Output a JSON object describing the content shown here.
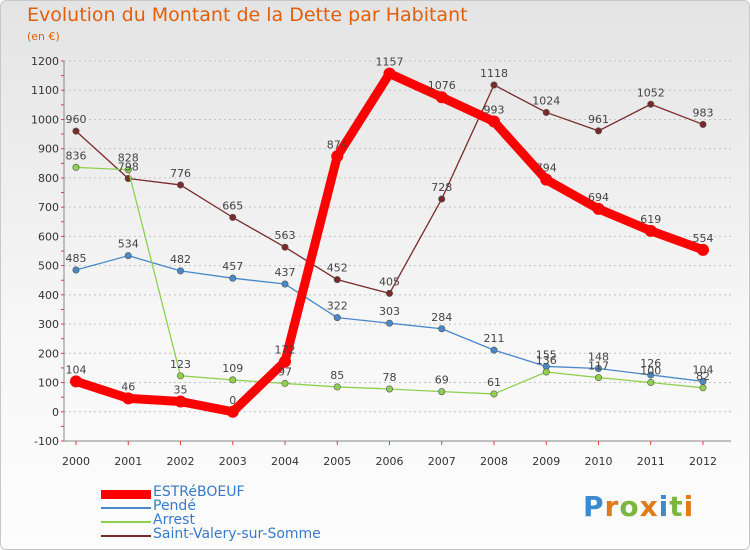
{
  "title": "Evolution du Montant de la Dette par Habitant",
  "subtitle": "(en €)",
  "logo": {
    "text": "Proxiti",
    "letter_colors": [
      "#3a8ad0",
      "#e07a1a",
      "#7ab640",
      "#e07a1a",
      "#3a8ad0",
      "#7ab640",
      "#e07a1a"
    ]
  },
  "chart_data": {
    "type": "line",
    "x": [
      "2000",
      "2001",
      "2002",
      "2003",
      "2004",
      "2005",
      "2006",
      "2007",
      "2008",
      "2009",
      "2010",
      "2011",
      "2012"
    ],
    "y_ticks": [
      "-100",
      "0",
      "100",
      "200",
      "300",
      "400",
      "500",
      "600",
      "700",
      "800",
      "900",
      "1000",
      "1100",
      "1200"
    ],
    "ylim": [
      -100,
      1200
    ],
    "grid": "horizontal dotted",
    "legend_position": "bottom-left",
    "series": [
      {
        "name": "ESTRéBOEUF",
        "color": "#ff0000",
        "values": [
          104,
          46,
          35,
          0,
          172,
          874,
          1157,
          1076,
          993,
          794,
          694,
          619,
          554
        ],
        "labels": [
          "104",
          "46",
          "35",
          "0",
          "172",
          "874",
          "1157",
          "1076",
          "993",
          "794",
          "694",
          "619",
          "554"
        ]
      },
      {
        "name": "Pendé",
        "color": "#4a88c8",
        "values": [
          485,
          534,
          482,
          457,
          437,
          322,
          303,
          284,
          211,
          155,
          148,
          126,
          104
        ],
        "labels": [
          "485",
          "534",
          "482",
          "457",
          "437",
          "322",
          "303",
          "284",
          "211",
          "155",
          "148",
          "126",
          "104"
        ]
      },
      {
        "name": "Arrest",
        "color": "#90d050",
        "values": [
          836,
          828,
          123,
          109,
          97,
          85,
          78,
          69,
          61,
          136,
          117,
          100,
          82
        ],
        "labels": [
          "836",
          "828",
          "123",
          "109",
          "97",
          "85",
          "78",
          "69",
          "61",
          "136",
          "117",
          "100",
          "82"
        ]
      },
      {
        "name": "Saint-Valery-sur-Somme",
        "color": "#7a2a2a",
        "values": [
          960,
          798,
          776,
          665,
          563,
          452,
          405,
          728,
          1118,
          1024,
          961,
          1052,
          983
        ],
        "labels": [
          "960",
          "798",
          "776",
          "665",
          "563",
          "452",
          "405",
          "728",
          "1118",
          "1024",
          "961",
          "1052",
          "983"
        ]
      }
    ]
  }
}
